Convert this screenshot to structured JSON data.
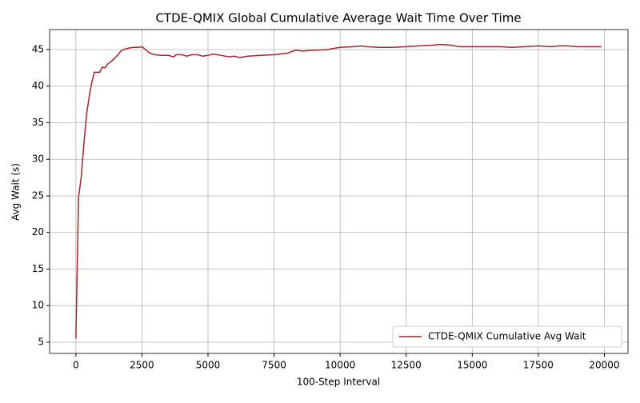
{
  "chart_data": {
    "type": "line",
    "title": "CTDE-QMIX Global Cumulative Average Wait Time Over Time",
    "x_label": "100-Step Interval",
    "y_label": "Avg Wait (s)",
    "x": [
      0,
      100,
      200,
      300,
      400,
      500,
      600,
      700,
      800,
      900,
      1000,
      1100,
      1200,
      1400,
      1600,
      1700,
      1800,
      2000,
      2200,
      2400,
      2500,
      2600,
      2800,
      3000,
      3200,
      3500,
      3700,
      3800,
      4000,
      4200,
      4400,
      4600,
      4800,
      5000,
      5200,
      5500,
      5800,
      6000,
      6200,
      6500,
      7000,
      7500,
      8000,
      8300,
      8600,
      9000,
      9500,
      10000,
      10500,
      10800,
      11000,
      11500,
      12000,
      12500,
      13000,
      13500,
      13800,
      14200,
      14500,
      15000,
      15500,
      16000,
      16500,
      17000,
      17500,
      18000,
      18300,
      18600,
      19000,
      19500,
      19900
    ],
    "series": [
      {
        "name": "CTDE-QMIX Cumulative Avg Wait",
        "color": "#a3262a",
        "values": [
          5.5,
          24.8,
          27.5,
          32,
          36,
          38.5,
          40.5,
          41.9,
          41.9,
          41.9,
          42.6,
          42.5,
          43.0,
          43.6,
          44.3,
          44.8,
          45.0,
          45.2,
          45.3,
          45.3,
          45.4,
          45.1,
          44.5,
          44.3,
          44.2,
          44.2,
          44.0,
          44.3,
          44.3,
          44.1,
          44.3,
          44.3,
          44.1,
          44.2,
          44.4,
          44.2,
          44.0,
          44.1,
          43.9,
          44.1,
          44.2,
          44.3,
          44.5,
          44.9,
          44.8,
          44.9,
          45.0,
          45.3,
          45.4,
          45.5,
          45.4,
          45.3,
          45.3,
          45.4,
          45.5,
          45.6,
          45.7,
          45.6,
          45.4,
          45.4,
          45.4,
          45.4,
          45.3,
          45.4,
          45.5,
          45.4,
          45.5,
          45.5,
          45.4,
          45.4,
          45.4
        ]
      }
    ],
    "xlim": [
      -995,
      20895
    ],
    "ylim": [
      3.47,
      47.73
    ],
    "xticks": [
      0,
      2500,
      5000,
      7500,
      10000,
      12500,
      15000,
      17500,
      20000
    ],
    "yticks": [
      5,
      10,
      15,
      20,
      25,
      30,
      35,
      40,
      45
    ],
    "grid": true,
    "legend": "lower right"
  }
}
